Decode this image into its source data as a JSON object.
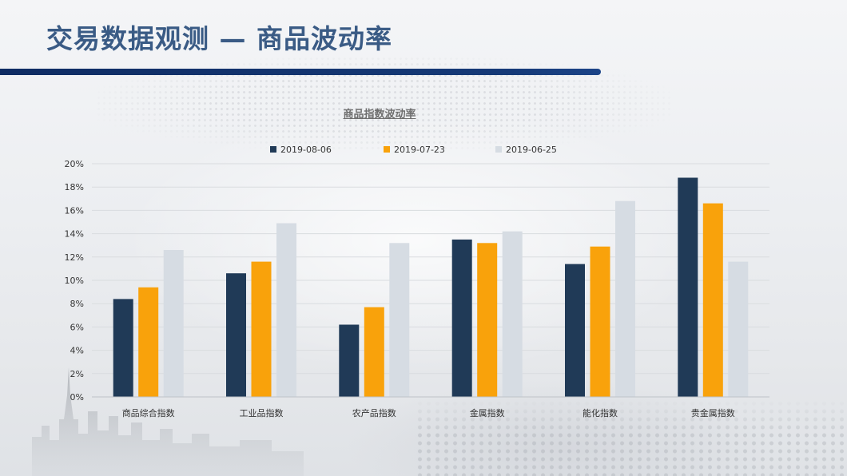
{
  "title": "交易数据观测 — 商品波动率",
  "colors": {
    "title": "#3a5b85",
    "bar_header": "#13336e"
  },
  "chart_data": {
    "type": "bar",
    "title": "商品指数波动率",
    "categories": [
      "商品综合指数",
      "工业品指数",
      "农产品指数",
      "金属指数",
      "能化指数",
      "贵金属指数"
    ],
    "series": [
      {
        "name": "2019-08-06",
        "color": "#203a57",
        "values": [
          8.4,
          10.6,
          6.2,
          13.5,
          11.4,
          18.8
        ]
      },
      {
        "name": "2019-07-23",
        "color": "#f9a20b",
        "values": [
          9.4,
          11.6,
          7.7,
          13.2,
          12.9,
          16.6
        ]
      },
      {
        "name": "2019-06-25",
        "color": "#d6dce3",
        "values": [
          12.6,
          14.9,
          13.2,
          14.2,
          16.8,
          11.6
        ]
      }
    ],
    "ylim": [
      0,
      20
    ],
    "yticks": [
      "0%",
      "2%",
      "4%",
      "6%",
      "8%",
      "10%",
      "12%",
      "14%",
      "16%",
      "18%",
      "20%"
    ],
    "xlabel": "",
    "ylabel": "",
    "grid": true,
    "legend_position": "top"
  }
}
